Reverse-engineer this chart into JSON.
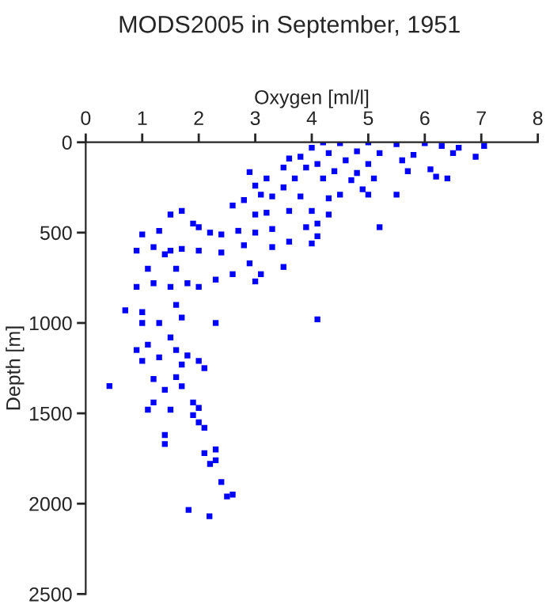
{
  "chart_data": {
    "type": "scatter",
    "title": "MODS2005 in September, 1951",
    "xlabel": "Oxygen [ml/l]",
    "ylabel": "Depth [m]",
    "xlim": [
      0,
      8
    ],
    "xticks": [
      0,
      1,
      2,
      3,
      4,
      5,
      6,
      7,
      8
    ],
    "ylim": [
      2500,
      0
    ],
    "yticks": [
      0,
      500,
      1000,
      1500,
      2000,
      2500
    ],
    "grid": false,
    "marker": "square",
    "series": [
      {
        "color": "#0000ff",
        "x": [
          4.2,
          4.5,
          5.0,
          5.5,
          6.0,
          6.3,
          6.6,
          7.05,
          6.9,
          6.5,
          4.0,
          3.8,
          3.6,
          4.3,
          4.8,
          5.2,
          5.8,
          4.6,
          4.1,
          5.0,
          5.6,
          6.1,
          6.2,
          6.4,
          5.7,
          4.8,
          4.4,
          3.9,
          3.5,
          3.2,
          2.9,
          3.0,
          3.7,
          4.2,
          4.7,
          5.1,
          4.9,
          4.5,
          4.3,
          5.5,
          5.0,
          3.5,
          3.8,
          3.3,
          3.1,
          2.8,
          2.6,
          3.2,
          3.0,
          3.6,
          4.0,
          4.3,
          4.1,
          3.9,
          3.3,
          3.0,
          2.7,
          2.4,
          2.2,
          1.9,
          1.7,
          1.5,
          2.0,
          1.3,
          1.0,
          1.2,
          0.9,
          1.5,
          1.7,
          2.0,
          2.4,
          2.8,
          3.3,
          3.6,
          4.0,
          4.1,
          5.2,
          3.5,
          2.9,
          2.6,
          2.3,
          2.0,
          1.8,
          1.5,
          1.2,
          1.6,
          1.4,
          1.1,
          0.9,
          3.0,
          3.1,
          0.7,
          1.0,
          1.6,
          1.7,
          1.3,
          2.3,
          1.0,
          4.1,
          1.1,
          1.5,
          1.6,
          1.8,
          1.3,
          1.0,
          0.9,
          1.7,
          2.0,
          1.2,
          1.6,
          1.7,
          0.42,
          1.4,
          1.2,
          1.1,
          1.5,
          1.9,
          2.0,
          1.9,
          2.0,
          2.1,
          1.4,
          1.4,
          2.3,
          2.1,
          2.3,
          2.2,
          2.4,
          2.6,
          2.5,
          1.82,
          2.19,
          2.1
        ],
        "values": [
          0,
          5,
          0,
          10,
          5,
          20,
          30,
          20,
          80,
          60,
          30,
          80,
          90,
          60,
          50,
          60,
          70,
          100,
          120,
          120,
          100,
          150,
          190,
          200,
          160,
          170,
          160,
          140,
          140,
          200,
          165,
          240,
          200,
          200,
          210,
          200,
          260,
          290,
          310,
          290,
          290,
          250,
          300,
          300,
          290,
          320,
          350,
          390,
          400,
          380,
          380,
          400,
          450,
          470,
          480,
          500,
          490,
          510,
          500,
          450,
          380,
          400,
          470,
          490,
          510,
          580,
          600,
          600,
          590,
          600,
          610,
          570,
          580,
          550,
          560,
          520,
          470,
          690,
          670,
          730,
          760,
          800,
          780,
          800,
          780,
          700,
          620,
          700,
          800,
          770,
          730,
          930,
          940,
          900,
          970,
          1000,
          1000,
          1000,
          980,
          1120,
          1080,
          1150,
          1180,
          1190,
          1210,
          1150,
          1230,
          1210,
          1310,
          1300,
          1350,
          1349,
          1370,
          1440,
          1480,
          1480,
          1440,
          1470,
          1510,
          1550,
          1580,
          1620,
          1670,
          1700,
          1720,
          1760,
          1780,
          1880,
          1950,
          1960,
          2035,
          2070,
          1250
        ]
      }
    ]
  }
}
